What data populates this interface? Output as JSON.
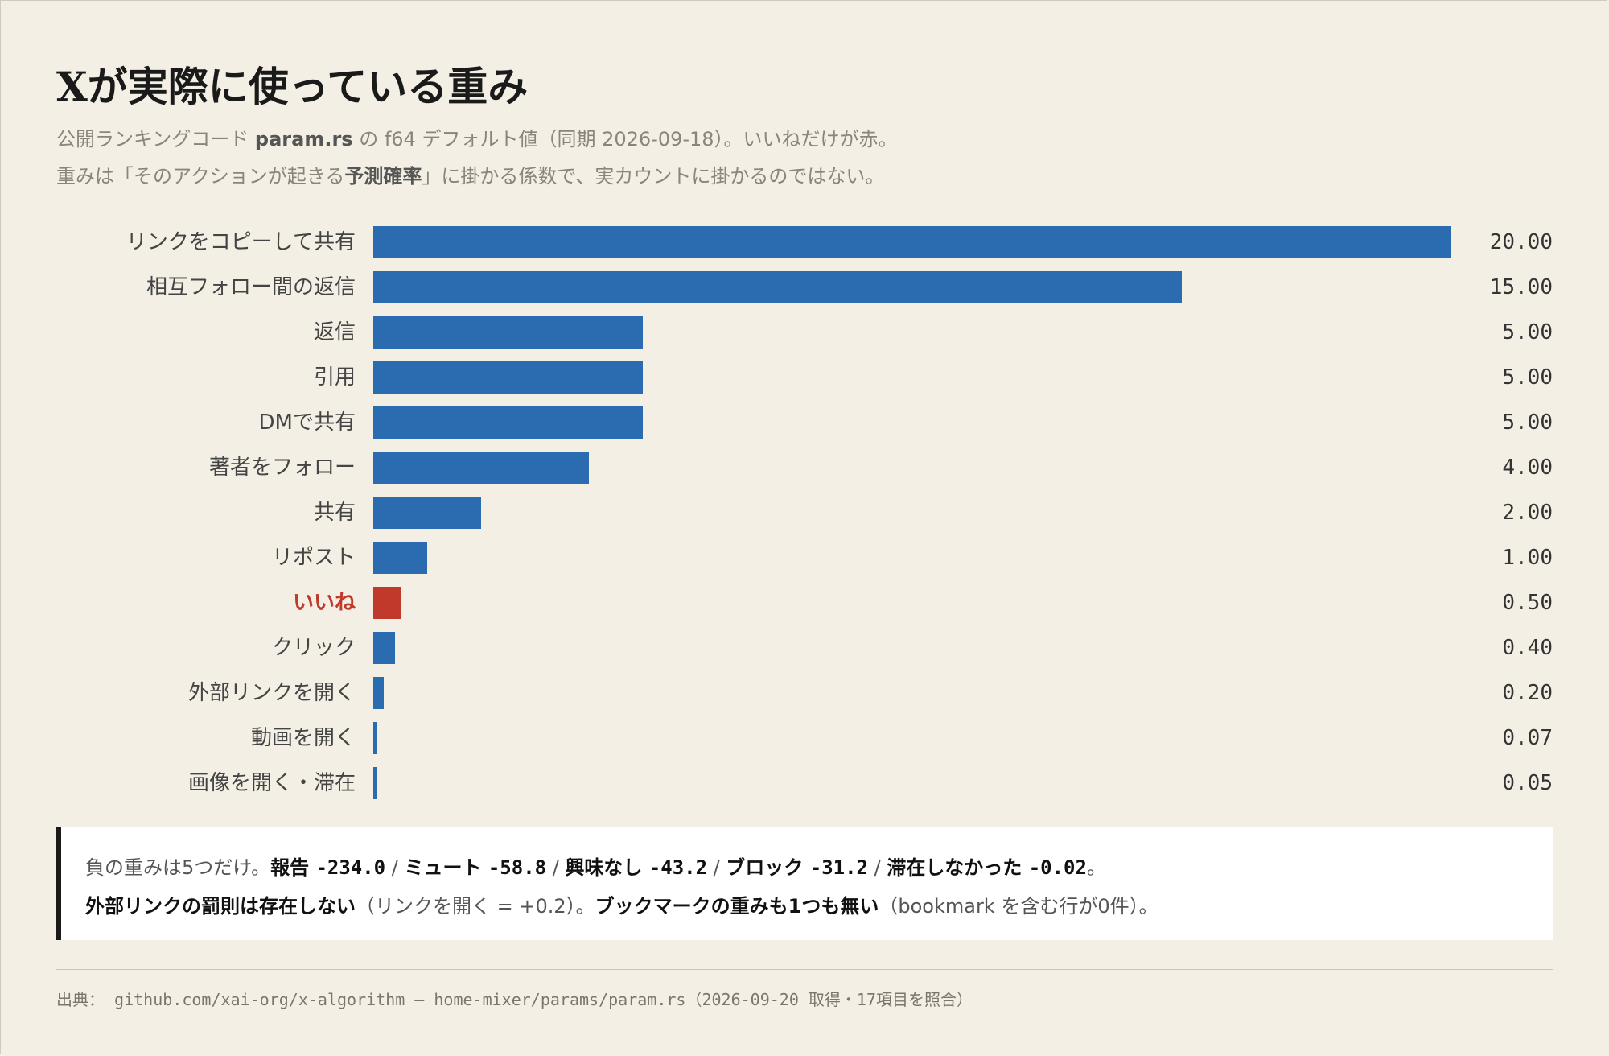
{
  "header": {
    "title": "Xが実際に使っている重み",
    "subtitle_line1_a": "公開ランキングコード ",
    "subtitle_line1_b": "param.rs",
    "subtitle_line1_c": " の f64 デフォルト値（同期 2026-09-18）。いいねだけが赤。",
    "subtitle_line2_a": "重みは「そのアクションが起きる",
    "subtitle_line2_b": "予測確率",
    "subtitle_line2_c": "」に掛かる係数で、実カウントに掛かるのではない。"
  },
  "chart_data": {
    "type": "bar",
    "orientation": "horizontal",
    "categories": [
      "リンクをコピーして共有",
      "相互フォロー間の返信",
      "返信",
      "引用",
      "DMで共有",
      "著者をフォロー",
      "共有",
      "リポスト",
      "いいね",
      "クリック",
      "外部リンクを開く",
      "動画を開く",
      "画像を開く・滞在"
    ],
    "values": [
      20.0,
      15.0,
      5.0,
      5.0,
      5.0,
      4.0,
      2.0,
      1.0,
      0.5,
      0.4,
      0.2,
      0.07,
      0.05
    ],
    "value_labels": [
      "20.00",
      "15.00",
      "5.00",
      "5.00",
      "5.00",
      "4.00",
      "2.00",
      "1.00",
      "0.50",
      "0.40",
      "0.20",
      "0.07",
      "0.05"
    ],
    "highlight_category": "いいね",
    "xlim": [
      0,
      20
    ],
    "grid": false,
    "colors": {
      "default": "#2b6cb0",
      "highlight": "#c0392b"
    }
  },
  "note": {
    "l1_prefix": "負の重みは5つだけ。",
    "items": [
      {
        "name": "報告",
        "value": "-234.0"
      },
      {
        "name": "ミュート",
        "value": "-58.8"
      },
      {
        "name": "興味なし",
        "value": "-43.2"
      },
      {
        "name": "ブロック",
        "value": "-31.2"
      },
      {
        "name": "滞在しなかった",
        "value": "-0.02"
      }
    ],
    "separator": " / ",
    "l1_suffix": "。",
    "l2_bold1": "外部リンクの罰則は存在しない",
    "l2_text1": "（リンクを開く = +0.2）。",
    "l2_bold2": "ブックマークの重みも1つも無い",
    "l2_text2": "（bookmark を含む行が0件）。"
  },
  "footer": {
    "source": "出典： github.com/xai-org/x-algorithm — home-mixer/params/param.rs（2026-09-20 取得・17項目を照合）"
  }
}
